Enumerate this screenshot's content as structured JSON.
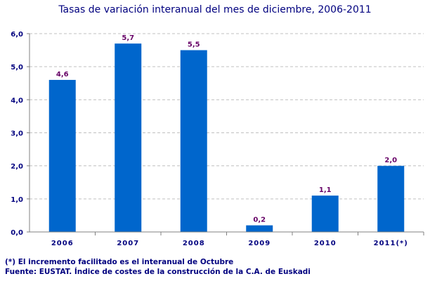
{
  "chart_data": {
    "type": "bar",
    "title": "Tasas de variación interanual del mes de diciembre, 2006-2011",
    "categories": [
      "2006",
      "2007",
      "2008",
      "2009",
      "2010",
      "2011(*)"
    ],
    "values": [
      4.6,
      5.7,
      5.5,
      0.2,
      1.1,
      2.0
    ],
    "data_labels": [
      "4,6",
      "5,7",
      "5,5",
      "0,2",
      "1,1",
      "2,0"
    ],
    "yticks": [
      "0,0",
      "1,0",
      "2,0",
      "3,0",
      "4,0",
      "5,0",
      "6,0"
    ],
    "ylim": [
      0,
      6
    ],
    "grid": true,
    "colors": {
      "bar": "#0066cc",
      "label": "#660066",
      "axis_text": "#00007f",
      "grid": "#c0c0c0"
    }
  },
  "notes": {
    "footnote": "(*) El incremento facilitado es el interanual de Octubre",
    "source": "Fuente: EUSTAT. Índice de costes de la construcción de la C.A. de Euskadi"
  }
}
